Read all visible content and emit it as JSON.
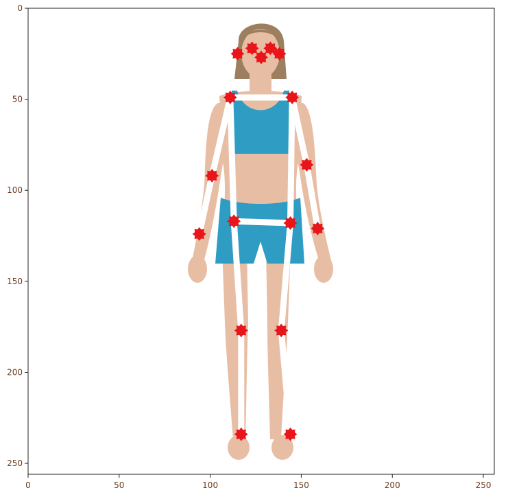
{
  "figure": {
    "image_subject": "woman-figure",
    "axes": {
      "xlim": [
        0,
        256
      ],
      "ylim": [
        256,
        0
      ],
      "x_ticks": [
        0,
        50,
        100,
        150,
        200,
        250
      ],
      "y_ticks": [
        0,
        50,
        100,
        150,
        200,
        250
      ],
      "x_tick_labels": [
        "0",
        "50",
        "100",
        "150",
        "200",
        "250"
      ],
      "y_tick_labels": [
        "0",
        "50",
        "100",
        "150",
        "200",
        "250"
      ]
    },
    "colors": {
      "skin": "#e7bda4",
      "skin_shadow": "#c99077",
      "hair": "#9b7f5e",
      "clothing": "#2f9cc4",
      "skeleton": "#ffffff",
      "keypoint": "#e8161b",
      "axis": "#222222",
      "tick_text": "#6b3a1c"
    },
    "keypoints": [
      {
        "name": "right-ear",
        "x": 115,
        "y": 25
      },
      {
        "name": "right-eye",
        "x": 123,
        "y": 22
      },
      {
        "name": "nose",
        "x": 128,
        "y": 27
      },
      {
        "name": "left-eye",
        "x": 133,
        "y": 22
      },
      {
        "name": "left-ear",
        "x": 138,
        "y": 25
      },
      {
        "name": "right-shoulder",
        "x": 111,
        "y": 49
      },
      {
        "name": "left-shoulder",
        "x": 145,
        "y": 49
      },
      {
        "name": "right-elbow",
        "x": 101,
        "y": 92
      },
      {
        "name": "left-elbow",
        "x": 153,
        "y": 86
      },
      {
        "name": "right-wrist",
        "x": 94,
        "y": 124
      },
      {
        "name": "left-wrist",
        "x": 159,
        "y": 121
      },
      {
        "name": "right-hip",
        "x": 113,
        "y": 117
      },
      {
        "name": "left-hip",
        "x": 144,
        "y": 118
      },
      {
        "name": "right-knee",
        "x": 117,
        "y": 177
      },
      {
        "name": "left-knee",
        "x": 139,
        "y": 177
      },
      {
        "name": "right-ankle",
        "x": 117,
        "y": 234
      },
      {
        "name": "left-ankle",
        "x": 144,
        "y": 234
      }
    ],
    "skeleton": [
      [
        "right-shoulder",
        "left-shoulder"
      ],
      [
        "right-shoulder",
        "right-elbow"
      ],
      [
        "right-elbow",
        "right-wrist"
      ],
      [
        "left-shoulder",
        "left-elbow"
      ],
      [
        "left-elbow",
        "left-wrist"
      ],
      [
        "right-shoulder",
        "right-hip"
      ],
      [
        "left-shoulder",
        "left-hip"
      ],
      [
        "right-hip",
        "left-hip"
      ],
      [
        "right-hip",
        "right-knee"
      ],
      [
        "right-knee",
        "right-ankle"
      ],
      [
        "left-hip",
        "left-knee"
      ],
      [
        "left-knee",
        "left-ankle"
      ]
    ]
  }
}
